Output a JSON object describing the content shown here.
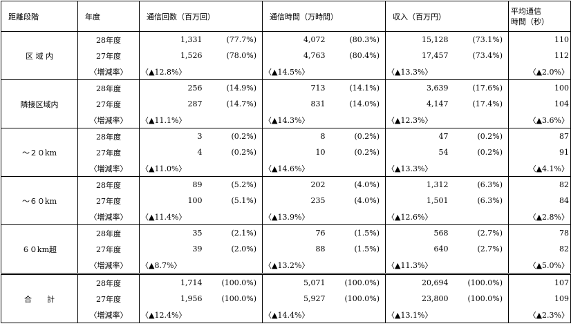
{
  "headers": {
    "distance": "距離段階",
    "year": "年度",
    "calls": "通信回数（百万回）",
    "time": "通信時間（万時間）",
    "revenue": "収入（百万円）",
    "avg_line1": "平均通信",
    "avg_line2": "時間（秒）"
  },
  "groups": [
    {
      "label": "区 域 内",
      "rows": [
        {
          "year": "28年度",
          "calls": "1,331",
          "calls_pct": "(77.7%)",
          "time": "4,072",
          "time_pct": "(80.3%)",
          "revenue": "15,128",
          "revenue_pct": "(73.1%)",
          "avg": "110"
        },
        {
          "year": "27年度",
          "calls": "1,526",
          "calls_pct": "(78.0%)",
          "time": "4,763",
          "time_pct": "(80.4%)",
          "revenue": "17,457",
          "revenue_pct": "(73.4%)",
          "avg": "112"
        }
      ],
      "growth": {
        "label": "〈増減率〉",
        "calls": "〈▲12.8%〉",
        "time": "〈▲14.5%〉",
        "revenue": "〈▲13.3%〉",
        "avg": "〈▲2.0%〉"
      }
    },
    {
      "label": "隣接区域内",
      "rows": [
        {
          "year": "28年度",
          "calls": "256",
          "calls_pct": "(14.9%)",
          "time": "713",
          "time_pct": "(14.1%)",
          "revenue": "3,639",
          "revenue_pct": "(17.6%)",
          "avg": "100"
        },
        {
          "year": "27年度",
          "calls": "287",
          "calls_pct": "(14.7%)",
          "time": "831",
          "time_pct": "(14.0%)",
          "revenue": "4,147",
          "revenue_pct": "(17.4%)",
          "avg": "104"
        }
      ],
      "growth": {
        "label": "〈増減率〉",
        "calls": "〈▲11.1%〉",
        "time": "〈▲14.3%〉",
        "revenue": "〈▲12.3%〉",
        "avg": "〈▲3.6%〉"
      }
    },
    {
      "label": "～２０km",
      "rows": [
        {
          "year": "28年度",
          "calls": "3",
          "calls_pct": "(0.2%)",
          "time": "8",
          "time_pct": "(0.2%)",
          "revenue": "47",
          "revenue_pct": "(0.2%)",
          "avg": "87"
        },
        {
          "year": "27年度",
          "calls": "4",
          "calls_pct": "(0.2%)",
          "time": "10",
          "time_pct": "(0.2%)",
          "revenue": "54",
          "revenue_pct": "(0.2%)",
          "avg": "91"
        }
      ],
      "growth": {
        "label": "〈増減率〉",
        "calls": "〈▲11.0%〉",
        "time": "〈▲14.6%〉",
        "revenue": "〈▲13.3%〉",
        "avg": "〈▲4.1%〉"
      }
    },
    {
      "label": "～６０km",
      "rows": [
        {
          "year": "28年度",
          "calls": "89",
          "calls_pct": "(5.2%)",
          "time": "202",
          "time_pct": "(4.0%)",
          "revenue": "1,312",
          "revenue_pct": "(6.3%)",
          "avg": "82"
        },
        {
          "year": "27年度",
          "calls": "100",
          "calls_pct": "(5.1%)",
          "time": "235",
          "time_pct": "(4.0%)",
          "revenue": "1,501",
          "revenue_pct": "(6.3%)",
          "avg": "84"
        }
      ],
      "growth": {
        "label": "〈増減率〉",
        "calls": "〈▲11.4%〉",
        "time": "〈▲13.9%〉",
        "revenue": "〈▲12.6%〉",
        "avg": "〈▲2.8%〉"
      }
    },
    {
      "label": "６０km超",
      "rows": [
        {
          "year": "28年度",
          "calls": "35",
          "calls_pct": "(2.1%)",
          "time": "76",
          "time_pct": "(1.5%)",
          "revenue": "568",
          "revenue_pct": "(2.7%)",
          "avg": "78"
        },
        {
          "year": "27年度",
          "calls": "39",
          "calls_pct": "(2.0%)",
          "time": "88",
          "time_pct": "(1.5%)",
          "revenue": "640",
          "revenue_pct": "(2.7%)",
          "avg": "82"
        }
      ],
      "growth": {
        "label": "〈増減率〉",
        "calls": "〈▲8.7%〉",
        "time": "〈▲13.2%〉",
        "revenue": "〈▲11.3%〉",
        "avg": "〈▲5.0%〉"
      }
    },
    {
      "label": "合　　計",
      "rows": [
        {
          "year": "28年度",
          "calls": "1,714",
          "calls_pct": "(100.0%)",
          "time": "5,071",
          "time_pct": "(100.0%)",
          "revenue": "20,694",
          "revenue_pct": "(100.0%)",
          "avg": "107"
        },
        {
          "year": "27年度",
          "calls": "1,956",
          "calls_pct": "(100.0%)",
          "time": "5,927",
          "time_pct": "(100.0%)",
          "revenue": "23,800",
          "revenue_pct": "(100.0%)",
          "avg": "109"
        }
      ],
      "growth": {
        "label": "〈増減率〉",
        "calls": "〈▲12.4%〉",
        "time": "〈▲14.4%〉",
        "revenue": "〈▲13.1%〉",
        "avg": "〈▲2.3%〉"
      }
    }
  ]
}
